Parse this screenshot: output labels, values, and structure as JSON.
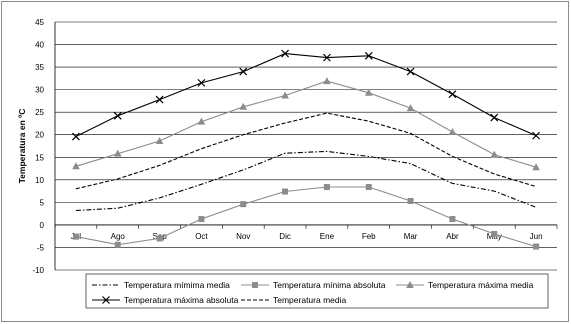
{
  "chart_data": {
    "type": "line",
    "title": "",
    "xlabel": "",
    "ylabel": "Temperatura en ºC",
    "ylim": [
      -10,
      45
    ],
    "ytick_step": 5,
    "grid": true,
    "legend_placement": "bottom",
    "categories": [
      "Jul",
      "Ago",
      "Sep",
      "Oct",
      "Nov",
      "Dic",
      "Ene",
      "Feb",
      "Mar",
      "Abr",
      "May",
      "Jun"
    ],
    "series": [
      {
        "name": "Temperatura mímima media",
        "marker": "none",
        "dash": "dashdot",
        "color": "#000000",
        "values": [
          3.2,
          3.7,
          6.0,
          9.0,
          12.2,
          15.9,
          16.3,
          15.2,
          13.6,
          9.2,
          7.5,
          3.9
        ]
      },
      {
        "name": "Temperatura mínima absoluta",
        "marker": "square",
        "dash": "solid",
        "color": "#8c8c8c",
        "values": [
          -2.6,
          -4.4,
          -3.0,
          1.3,
          4.6,
          7.4,
          8.4,
          8.4,
          5.3,
          1.3,
          -2.0,
          -4.8
        ]
      },
      {
        "name": "Temperatura máxima media",
        "marker": "triangle",
        "dash": "solid",
        "color": "#8c8c8c",
        "values": [
          13.0,
          15.8,
          18.6,
          22.9,
          26.2,
          28.7,
          31.9,
          29.3,
          25.9,
          20.6,
          15.6,
          12.8
        ]
      },
      {
        "name": "Temperatura máxima absoluta",
        "marker": "x",
        "dash": "solid",
        "color": "#000000",
        "values": [
          19.6,
          24.2,
          27.8,
          31.5,
          34.0,
          38.0,
          37.1,
          37.5,
          34.0,
          29.0,
          23.8,
          19.8
        ]
      },
      {
        "name": "Temperatura media",
        "marker": "none",
        "dash": "dashed",
        "color": "#000000",
        "values": [
          8.0,
          10.2,
          13.2,
          16.9,
          20.0,
          22.6,
          24.8,
          23.0,
          20.3,
          15.2,
          11.3,
          8.5
        ]
      }
    ]
  }
}
